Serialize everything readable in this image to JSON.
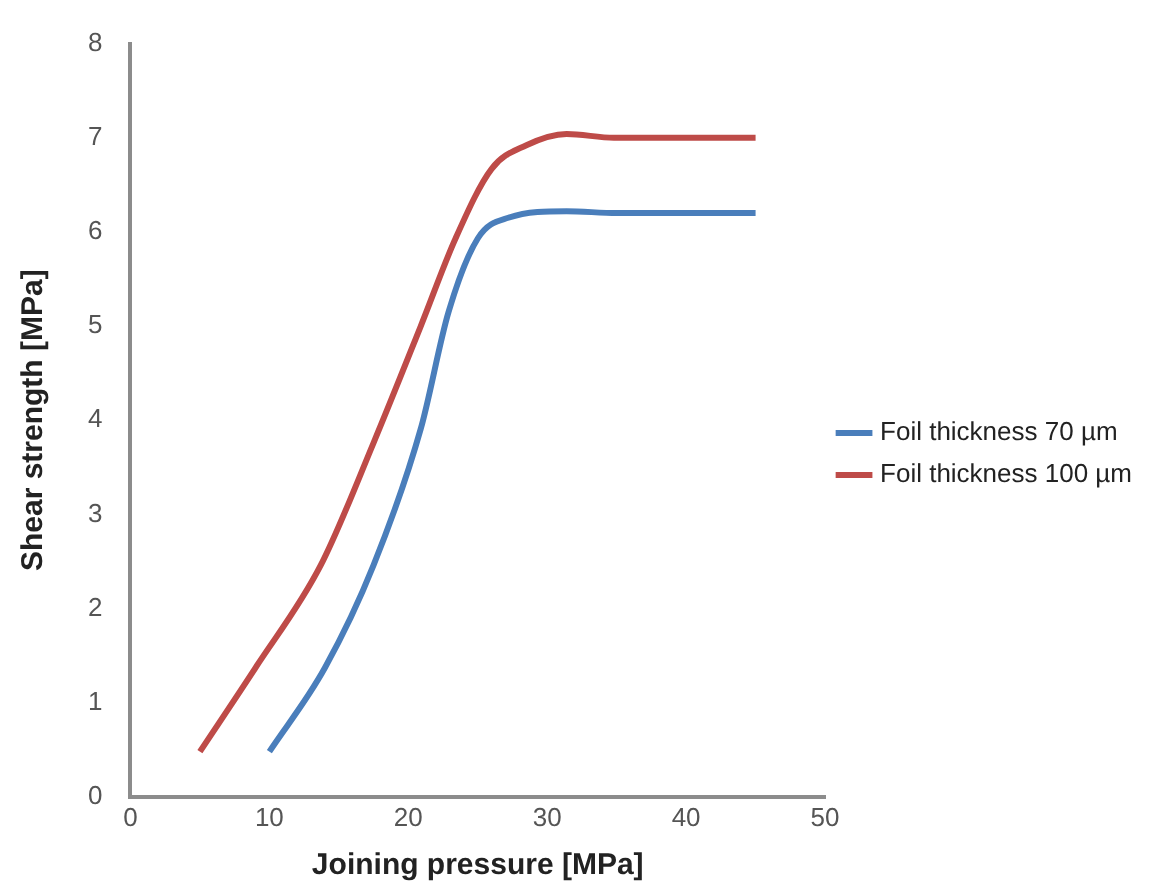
{
  "chart_data": {
    "type": "line",
    "xlabel": "Joining pressure [MPa]",
    "ylabel": "Shear strength [MPa]",
    "xlim": [
      0,
      50
    ],
    "xticks": [
      0,
      10,
      20,
      30,
      40,
      50
    ],
    "ylim": [
      0,
      8
    ],
    "yticks": [
      0,
      1,
      2,
      3,
      4,
      5,
      6,
      7,
      8
    ],
    "grid": false,
    "legend": "right",
    "marker": "none",
    "line_style": "solid",
    "series": [
      {
        "name": "Foil thickness 70 µm",
        "color": "#4a7ebb",
        "x": [
          10,
          14,
          17.5,
          20.9,
          22.9,
          25,
          27.2,
          31.4,
          35,
          45
        ],
        "values": [
          0.48,
          1.37,
          2.46,
          3.91,
          5.15,
          5.93,
          6.15,
          6.22,
          6.2,
          6.2
        ]
      },
      {
        "name": "Foil thickness 100 µm",
        "color": "#be4b48",
        "x": [
          5,
          9,
          13.7,
          17.5,
          20.9,
          23.4,
          26,
          28.5,
          31.4,
          34.8,
          45
        ],
        "values": [
          0.48,
          1.37,
          2.46,
          3.76,
          5.0,
          5.93,
          6.67,
          6.92,
          7.04,
          7.0,
          7.0
        ]
      }
    ]
  }
}
